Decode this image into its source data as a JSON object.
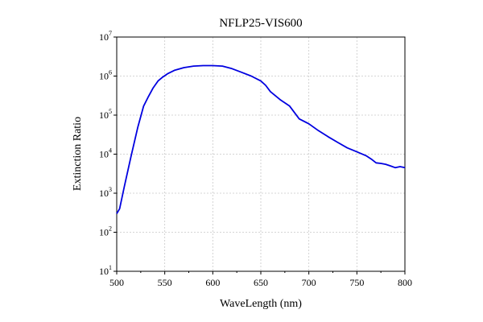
{
  "chart_data": {
    "type": "line",
    "title": "NFLP25-VIS600",
    "xlabel": "WaveLength (nm)",
    "ylabel": "Extinction Ratio",
    "xlim": [
      500,
      800
    ],
    "ylim": [
      10,
      10000000
    ],
    "yscale": "log",
    "grid": true,
    "x_ticks": [
      "500",
      "550",
      "600",
      "650",
      "700",
      "750",
      "800"
    ],
    "y_ticks": [
      {
        "value": 10,
        "base": "10",
        "exp": "1"
      },
      {
        "value": 100,
        "base": "10",
        "exp": "2"
      },
      {
        "value": 1000,
        "base": "10",
        "exp": "3"
      },
      {
        "value": 10000,
        "base": "10",
        "exp": "4"
      },
      {
        "value": 100000,
        "base": "10",
        "exp": "5"
      },
      {
        "value": 1000000,
        "base": "10",
        "exp": "6"
      },
      {
        "value": 10000000,
        "base": "10",
        "exp": "7"
      }
    ],
    "series": [
      {
        "color": "#0000e0",
        "x": [
          500,
          503,
          508,
          515,
          522,
          528,
          533,
          538,
          543,
          548,
          553,
          560,
          570,
          580,
          590,
          600,
          610,
          620,
          630,
          640,
          650,
          655,
          660,
          670,
          680,
          690,
          700,
          710,
          720,
          730,
          740,
          750,
          760,
          765,
          770,
          775,
          780,
          785,
          790,
          795,
          800
        ],
        "y": [
          300,
          400,
          1500,
          9000,
          50000,
          170000,
          300000,
          500000,
          750000,
          950000,
          1150000,
          1400000,
          1650000,
          1800000,
          1850000,
          1850000,
          1800000,
          1550000,
          1250000,
          1000000,
          750000,
          580000,
          400000,
          250000,
          170000,
          80000,
          60000,
          40000,
          28000,
          20000,
          14500,
          11500,
          9000,
          7500,
          6000,
          5800,
          5500,
          5000,
          4500,
          4800,
          4500
        ]
      }
    ]
  }
}
